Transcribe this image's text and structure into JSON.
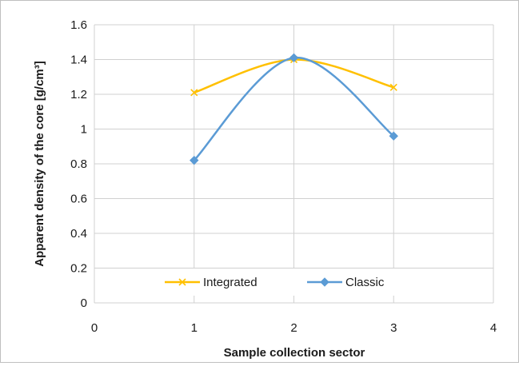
{
  "chart_data": {
    "type": "scatter",
    "title": "",
    "xlabel": "Sample collection sector",
    "ylabel": "Apparent density of the core [g/cm³]",
    "xlim": [
      0,
      4
    ],
    "ylim": [
      0,
      1.6
    ],
    "x_ticks": [
      "0",
      "1",
      "2",
      "3",
      "4"
    ],
    "y_ticks": [
      "0",
      "0.2",
      "0.4",
      "0.6",
      "0.8",
      "1",
      "1.2",
      "1.4",
      "1.6"
    ],
    "grid": true,
    "smoothed_lines": true,
    "legend_position": "bottom-center",
    "series": [
      {
        "name": "Integrated",
        "marker": "x",
        "color": "#FFC000",
        "x": [
          1,
          2,
          3
        ],
        "y": [
          1.21,
          1.4,
          1.24
        ]
      },
      {
        "name": "Classic",
        "marker": "diamond",
        "color": "#5B9BD5",
        "x": [
          1,
          2,
          3
        ],
        "y": [
          0.82,
          1.41,
          0.96
        ]
      }
    ]
  }
}
